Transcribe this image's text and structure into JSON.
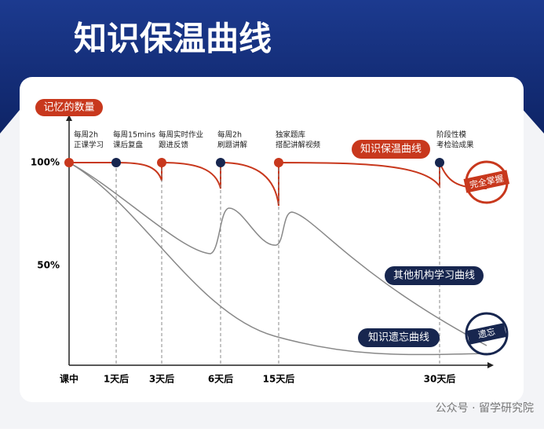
{
  "title": "知识保温曲线",
  "y_axis_title": "记忆的数量",
  "y_labels": [
    "100%",
    "50%"
  ],
  "x_labels": [
    "课中",
    "1天后",
    "3天后",
    "6天后",
    "15天后",
    "30天后"
  ],
  "notes": [
    [
      "每周2h",
      "正课学习"
    ],
    [
      "每周15mins",
      "课后复盘"
    ],
    [
      "每周实时作业",
      "跟进反馈"
    ],
    [
      "每周2h",
      "刷题讲解"
    ],
    [
      "独家题库",
      "搭配讲解视频"
    ],
    [
      "阶段性模",
      "考检验成果"
    ]
  ],
  "curve_labels": [
    "知识保温曲线",
    "其他机构学习曲线",
    "知识遗忘曲线"
  ],
  "stamps": [
    "完全掌握",
    "遗忘"
  ],
  "watermark": "公众号 · 留学研究院"
}
